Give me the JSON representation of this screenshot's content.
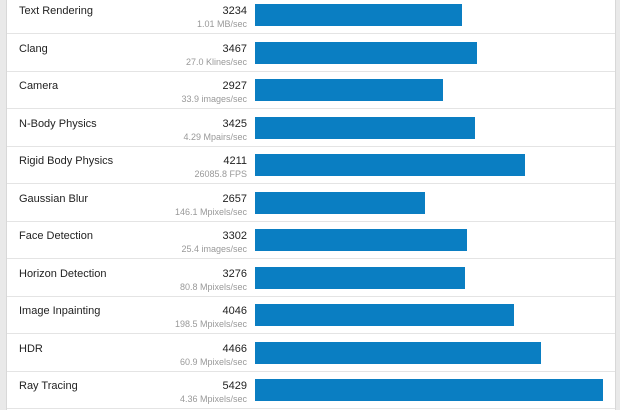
{
  "chart_data": {
    "type": "bar",
    "orientation": "horizontal",
    "bar_color": "#0a7ec2",
    "xlim": [
      0,
      5429
    ],
    "categories": [
      "Text Rendering",
      "Clang",
      "Camera",
      "N-Body Physics",
      "Rigid Body Physics",
      "Gaussian Blur",
      "Face Detection",
      "Horizon Detection",
      "Image Inpainting",
      "HDR",
      "Ray Tracing"
    ],
    "values": [
      3234,
      3467,
      2927,
      3425,
      4211,
      2657,
      3302,
      3276,
      4046,
      4466,
      5429
    ],
    "details": [
      "1.01 MB/sec",
      "27.0 Klines/sec",
      "33.9 images/sec",
      "4.29 Mpairs/sec",
      "26085.8 FPS",
      "146.1 Mpixels/sec",
      "25.4 images/sec",
      "80.8 Mpixels/sec",
      "198.5 Mpixels/sec",
      "60.9 Mpixels/sec",
      "4.36 Mpixels/sec"
    ]
  }
}
